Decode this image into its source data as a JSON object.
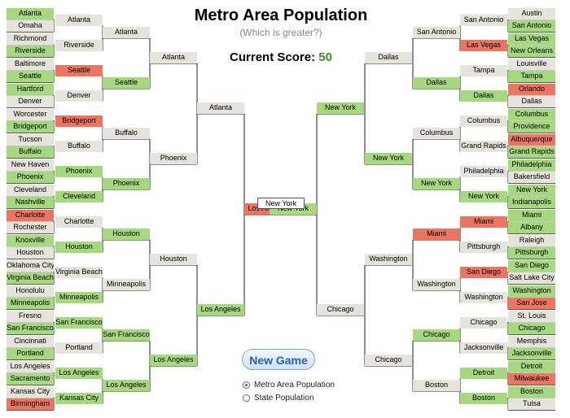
{
  "header": {
    "title": "Metro Area Population",
    "subtitle": "(Which is greater?)",
    "score_label": "Current Score:",
    "score_value": "50"
  },
  "bracket": {
    "final": "New York",
    "left": {
      "r1": [
        "Atlanta",
        "Omaha",
        "Richmond",
        "Riverside",
        "Baltimore",
        "Seattle",
        "Hartford",
        "Denver",
        "Worcester",
        "Bridgeport",
        "Tucson",
        "Buffalo",
        "New Haven",
        "Phoenix",
        "Cleveland",
        "Nashville",
        "Charlotte",
        "Rochester",
        "Knoxville",
        "Houston",
        "Oklahoma City",
        "Virginia Beach",
        "Honolulu",
        "Minneapolis",
        "Fresno",
        "San Francisco",
        "Cincinnati",
        "Portland",
        "Los Angeles",
        "Sacramento",
        "Kansas City",
        "Birmingham"
      ],
      "r2": [
        "Atlanta",
        "Riverside",
        "Seattle",
        "Denver",
        "Bridgeport",
        "Buffalo",
        "Phoenix",
        "Cleveland",
        "Charlotte",
        "Houston",
        "Virginia Beach",
        "Minneapolis",
        "San Francisco",
        "Portland",
        "Los Angeles",
        "Kansas City"
      ],
      "r3": [
        "Atlanta",
        "Seattle",
        "Buffalo",
        "Phoenix",
        "Houston",
        "Minneapolis",
        "San Francisco",
        "Los Angeles"
      ],
      "r4": [
        "Atlanta",
        "Phoenix",
        "Houston",
        "Los Angeles"
      ],
      "r5": [
        "Atlanta",
        "Los Angeles"
      ],
      "r6": [
        "Los Angeles"
      ]
    },
    "right": {
      "r1": [
        "Austin",
        "San Antonio",
        "Las Vegas",
        "New Orleans",
        "Louisville",
        "Tampa",
        "Orlando",
        "Dallas",
        "Columbus",
        "Providence",
        "Albuquerque",
        "Grand Rapids",
        "Philadelphia",
        "Bakersfield",
        "New York",
        "Indianapolis",
        "Miami",
        "Albany",
        "Raleigh",
        "Pittsburgh",
        "San Diego",
        "Salt Lake City",
        "Washington",
        "San Jose",
        "St. Louis",
        "Chicago",
        "Memphis",
        "Jacksonville",
        "Detroit",
        "Milwaukee",
        "Boston",
        "Tulsa"
      ],
      "r2": [
        "San Antonio",
        "Las Vegas",
        "Tampa",
        "Dallas",
        "Columbus",
        "Grand Rapids",
        "Philadelphia",
        "New York",
        "Miami",
        "Pittsburgh",
        "San Diego",
        "Washington",
        "Chicago",
        "Jacksonville",
        "Detroit",
        "Boston"
      ],
      "r3": [
        "San Antonio",
        "Dallas",
        "Columbus",
        "New York",
        "Miami",
        "Washington",
        "Chicago",
        "Boston"
      ],
      "r4": [
        "Dallas",
        "New York",
        "Washington",
        "Chicago"
      ],
      "r5": [
        "New York",
        "Chicago"
      ],
      "r6": [
        "New York"
      ]
    }
  },
  "status": {
    "left": {
      "r1": "gnngnggnngngngngrngnngngngngngnr",
      "r2": "nnrnrnggngnggngg",
      "r3": "ngnggngg",
      "r4": "nnng",
      "r5": "ng",
      "r6": "r"
    },
    "right": {
      "r1": "ngggngrnggrggnggggnggngrngnggrgn",
      "r2": "nrngnnngrnrnnngg",
      "r3": "ngngrngn",
      "r4": "ngnn",
      "r5": "gn",
      "r6": "g"
    }
  },
  "controls": {
    "new_game": "New Game",
    "options": [
      "Metro Area Population",
      "State Population"
    ],
    "selected": 0
  }
}
